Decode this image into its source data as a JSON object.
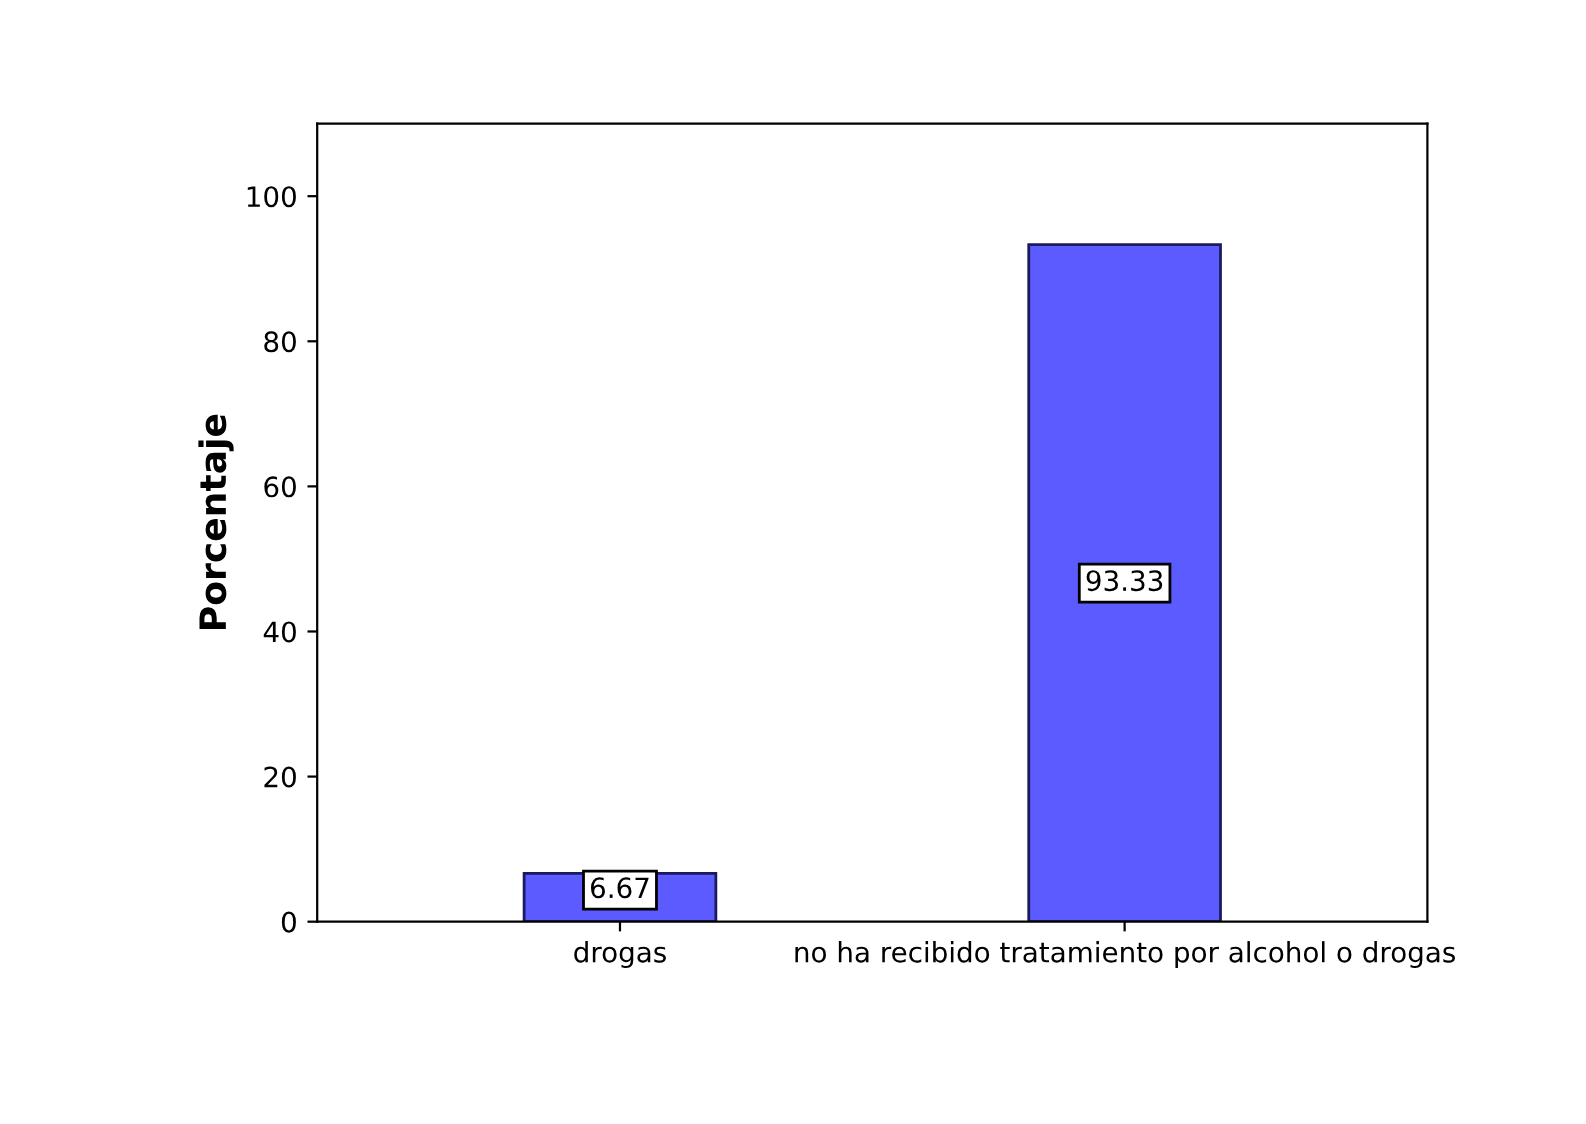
{
  "chart_data": {
    "type": "bar",
    "ylabel": "Porcentaje",
    "categories": [
      "drogas",
      "no ha recibido tratamiento por alcohol o drogas"
    ],
    "values": [
      6.67,
      93.33
    ],
    "color": "#5b5bff",
    "ylim": [
      0,
      110
    ],
    "yticks": [
      0,
      20,
      40,
      60,
      80,
      100
    ],
    "grid": false,
    "data_labels": true
  }
}
